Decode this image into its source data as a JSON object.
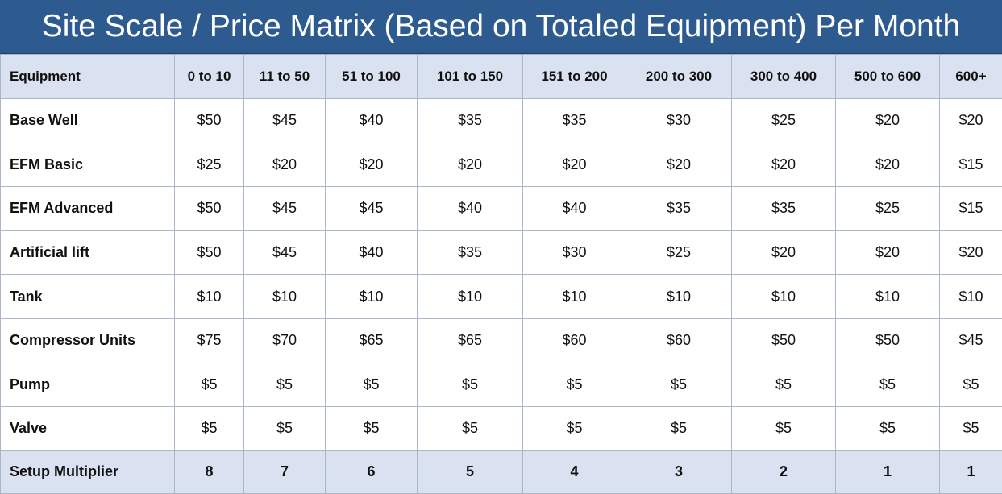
{
  "title": "Site Scale / Price Matrix (Based on Totaled Equipment) Per Month",
  "colors": {
    "title_bg": "#2e5b8f",
    "header_bg": "#dae2f2",
    "border": "#a9b7c9"
  },
  "table": {
    "corner_label": "Equipment",
    "columns": [
      "0 to 10",
      "11 to 50",
      "51 to 100",
      "101 to 150",
      "151 to 200",
      "200 to 300",
      "300 to 400",
      "500 to 600",
      "600+"
    ],
    "rows": [
      {
        "label": "Base Well",
        "values": [
          "$50",
          "$45",
          "$40",
          "$35",
          "$35",
          "$30",
          "$25",
          "$20",
          "$20"
        ]
      },
      {
        "label": "EFM Basic",
        "values": [
          "$25",
          "$20",
          "$20",
          "$20",
          "$20",
          "$20",
          "$20",
          "$20",
          "$15"
        ]
      },
      {
        "label": "EFM Advanced",
        "values": [
          "$50",
          "$45",
          "$45",
          "$40",
          "$40",
          "$35",
          "$35",
          "$25",
          "$15"
        ]
      },
      {
        "label": "Artificial lift",
        "values": [
          "$50",
          "$45",
          "$40",
          "$35",
          "$30",
          "$25",
          "$20",
          "$20",
          "$20"
        ]
      },
      {
        "label": "Tank",
        "values": [
          "$10",
          "$10",
          "$10",
          "$10",
          "$10",
          "$10",
          "$10",
          "$10",
          "$10"
        ]
      },
      {
        "label": "Compressor Units",
        "values": [
          "$75",
          "$70",
          "$65",
          "$65",
          "$60",
          "$60",
          "$50",
          "$50",
          "$45"
        ]
      },
      {
        "label": "Pump",
        "values": [
          "$5",
          "$5",
          "$5",
          "$5",
          "$5",
          "$5",
          "$5",
          "$5",
          "$5"
        ]
      },
      {
        "label": "Valve",
        "values": [
          "$5",
          "$5",
          "$5",
          "$5",
          "$5",
          "$5",
          "$5",
          "$5",
          "$5"
        ]
      }
    ],
    "footer": {
      "label": "Setup Multiplier",
      "values": [
        "8",
        "7",
        "6",
        "5",
        "4",
        "3",
        "2",
        "1",
        "1"
      ]
    }
  }
}
